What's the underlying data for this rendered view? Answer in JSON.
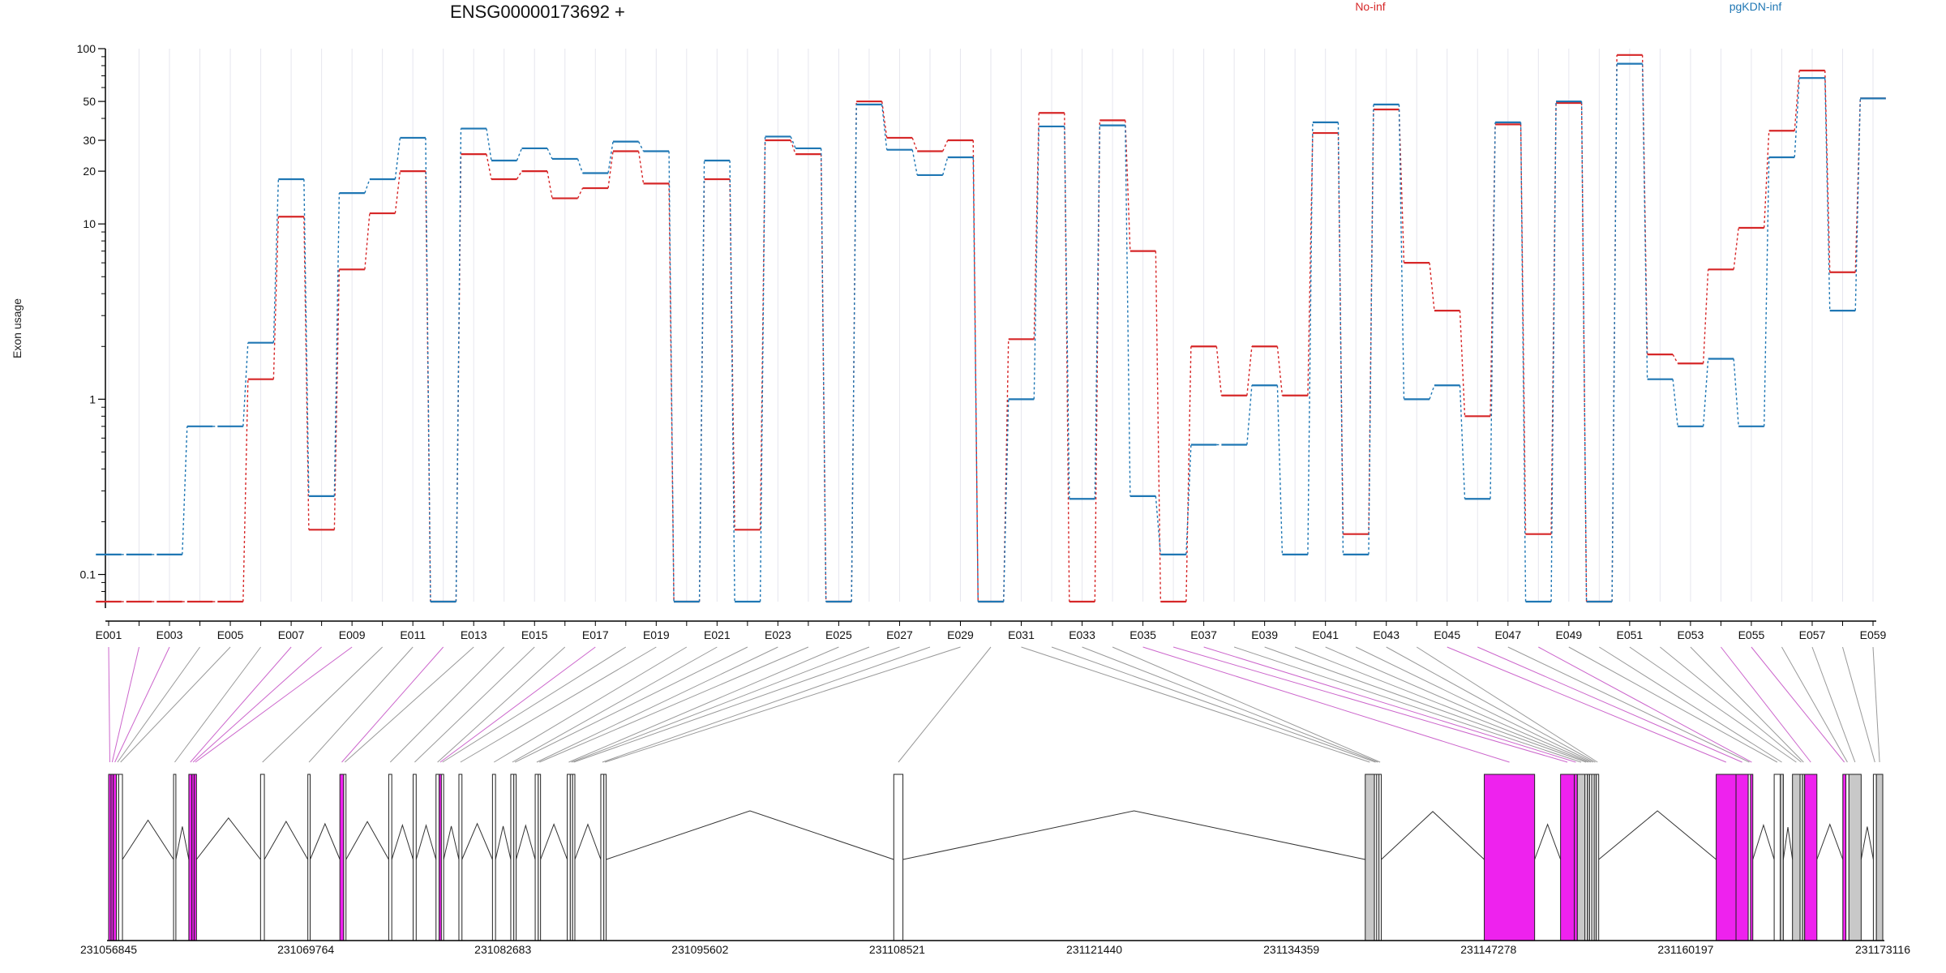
{
  "chart_data": {
    "type": "line",
    "title": "ENSG00000173692 +",
    "ylabel": "Exon usage",
    "yscale": "log",
    "ylim": [
      0.07,
      100
    ],
    "y_ticks": [
      0.1,
      1,
      10,
      20,
      30,
      50,
      100
    ],
    "y_tick_labels": [
      "0.1",
      "1",
      "10",
      "20",
      "30",
      "50",
      "100"
    ],
    "colors": {
      "No-inf": "#d62728",
      "pgKDN-inf": "#1f77b4",
      "alt_exon": "#ee22ee",
      "const_exon": "#c8c8c8"
    },
    "categories": [
      "E001",
      "E002",
      "E003",
      "E004",
      "E005",
      "E006",
      "E007",
      "E008",
      "E009",
      "E010",
      "E011",
      "E012",
      "E013",
      "E014",
      "E015",
      "E016",
      "E017",
      "E018",
      "E019",
      "E020",
      "E021",
      "E022",
      "E023",
      "E024",
      "E025",
      "E026",
      "E027",
      "E028",
      "E029",
      "E030",
      "E031",
      "E032",
      "E033",
      "E034",
      "E035",
      "E036",
      "E037",
      "E038",
      "E039",
      "E040",
      "E041",
      "E042",
      "E043",
      "E044",
      "E045",
      "E046",
      "E047",
      "E048",
      "E049",
      "E050",
      "E051",
      "E052",
      "E053",
      "E054",
      "E055",
      "E056",
      "E057",
      "E058",
      "E059"
    ],
    "x_tick_labels": [
      "E001",
      "E003",
      "E005",
      "E007",
      "E009",
      "E011",
      "E013",
      "E015",
      "E017",
      "E019",
      "E021",
      "E023",
      "E025",
      "E027",
      "E029",
      "E031",
      "E033",
      "E035",
      "E037",
      "E039",
      "E041",
      "E043",
      "E045",
      "E047",
      "E049",
      "E051",
      "E053",
      "E055",
      "E057",
      "E059"
    ],
    "series": [
      {
        "name": "No-inf",
        "values": [
          0.07,
          0.07,
          0.07,
          0.07,
          0.07,
          1.3,
          11,
          0.18,
          5.5,
          11.5,
          20,
          0.07,
          25,
          18,
          20,
          14,
          16,
          26,
          17,
          0.07,
          18,
          0.18,
          30,
          25,
          0.07,
          50,
          31,
          26,
          30,
          0.07,
          2.2,
          43,
          0.07,
          39,
          7,
          0.07,
          2.0,
          1.05,
          2.0,
          1.05,
          33,
          0.17,
          45,
          6,
          3.2,
          0.8,
          37,
          0.17,
          49,
          0.07,
          92,
          1.8,
          1.6,
          5.5,
          9.5,
          34,
          75,
          5.3,
          52
        ]
      },
      {
        "name": "pgKDN-inf",
        "values": [
          0.13,
          0.13,
          0.13,
          0.7,
          0.7,
          2.1,
          18,
          0.28,
          15,
          18,
          31,
          0.07,
          35,
          23,
          27,
          23.5,
          19.5,
          29.5,
          26,
          0.07,
          23,
          0.07,
          31.5,
          27,
          0.07,
          48,
          26.5,
          19,
          24,
          0.07,
          1.0,
          36,
          0.27,
          36.5,
          0.28,
          0.13,
          0.55,
          0.55,
          1.2,
          0.13,
          38,
          0.13,
          48,
          1.0,
          1.2,
          0.27,
          38,
          0.07,
          50,
          0.07,
          82,
          1.3,
          0.7,
          1.7,
          0.7,
          24,
          68,
          3.2,
          52
        ]
      }
    ],
    "genomic_axis": {
      "tick_labels": [
        "231056845",
        "231069764",
        "231082683",
        "231095602",
        "231108521",
        "231121440",
        "231134359",
        "231147278",
        "231160197",
        "231173116"
      ],
      "range": [
        231056845,
        231173116
      ]
    },
    "exons": [
      {
        "id": "E001",
        "start": 231056845,
        "end": 231057000,
        "fill": "alt_exon"
      },
      {
        "id": "E002",
        "start": 231057000,
        "end": 231057150,
        "fill": "alt_exon"
      },
      {
        "id": "E003",
        "start": 231057150,
        "end": 231057350,
        "fill": "alt_exon"
      },
      {
        "id": "E004",
        "start": 231057350,
        "end": 231057500,
        "fill": "none"
      },
      {
        "id": "E005",
        "start": 231057500,
        "end": 231057750,
        "fill": "none"
      },
      {
        "id": "E006",
        "start": 231061100,
        "end": 231061250,
        "fill": "none"
      },
      {
        "id": "E007",
        "start": 231062100,
        "end": 231062300,
        "fill": "alt_exon"
      },
      {
        "id": "E008",
        "start": 231062300,
        "end": 231062450,
        "fill": "alt_exon"
      },
      {
        "id": "E009",
        "start": 231062450,
        "end": 231062600,
        "fill": "alt_exon"
      },
      {
        "id": "E010",
        "start": 231066800,
        "end": 231067050,
        "fill": "none"
      },
      {
        "id": "E011",
        "start": 231069900,
        "end": 231070050,
        "fill": "none"
      },
      {
        "id": "E012",
        "start": 231072000,
        "end": 231072250,
        "fill": "alt_exon"
      },
      {
        "id": "E013",
        "start": 231072250,
        "end": 231072400,
        "fill": "none"
      },
      {
        "id": "E014",
        "start": 231075200,
        "end": 231075400,
        "fill": "none"
      },
      {
        "id": "E015",
        "start": 231076800,
        "end": 231077000,
        "fill": "none"
      },
      {
        "id": "E016",
        "start": 231078300,
        "end": 231078500,
        "fill": "none"
      },
      {
        "id": "E017",
        "start": 231078500,
        "end": 231078650,
        "fill": "alt_exon"
      },
      {
        "id": "E018",
        "start": 231078650,
        "end": 231078800,
        "fill": "none"
      },
      {
        "id": "E019",
        "start": 231079800,
        "end": 231080000,
        "fill": "none"
      },
      {
        "id": "E020",
        "start": 231082000,
        "end": 231082200,
        "fill": "none"
      },
      {
        "id": "E021",
        "start": 231083200,
        "end": 231083400,
        "fill": "none"
      },
      {
        "id": "E022",
        "start": 231083400,
        "end": 231083550,
        "fill": "none"
      },
      {
        "id": "E023",
        "start": 231084800,
        "end": 231085000,
        "fill": "none"
      },
      {
        "id": "E024",
        "start": 231085000,
        "end": 231085150,
        "fill": "none"
      },
      {
        "id": "E025",
        "start": 231086900,
        "end": 231087100,
        "fill": "none"
      },
      {
        "id": "E026",
        "start": 231087100,
        "end": 231087250,
        "fill": "none"
      },
      {
        "id": "E027",
        "start": 231087250,
        "end": 231087400,
        "fill": "none"
      },
      {
        "id": "E028",
        "start": 231089100,
        "end": 231089300,
        "fill": "none"
      },
      {
        "id": "E029",
        "start": 231089300,
        "end": 231089450,
        "fill": "none"
      },
      {
        "id": "E030",
        "start": 231108300,
        "end": 231108900,
        "fill": "none"
      },
      {
        "id": "E031",
        "start": 231139200,
        "end": 231139800,
        "fill": "const_exon"
      },
      {
        "id": "E032",
        "start": 231139800,
        "end": 231139950,
        "fill": "none"
      },
      {
        "id": "E033",
        "start": 231139950,
        "end": 231140100,
        "fill": "none"
      },
      {
        "id": "E034",
        "start": 231140100,
        "end": 231140250,
        "fill": "none"
      },
      {
        "id": "E035",
        "start": 231147000,
        "end": 231150300,
        "fill": "alt_exon"
      },
      {
        "id": "E036",
        "start": 231152000,
        "end": 231152900,
        "fill": "alt_exon"
      },
      {
        "id": "E037",
        "start": 231152900,
        "end": 231153100,
        "fill": "alt_exon"
      },
      {
        "id": "E038",
        "start": 231153100,
        "end": 231153600,
        "fill": "const_exon"
      },
      {
        "id": "E039",
        "start": 231153600,
        "end": 231153750,
        "fill": "none"
      },
      {
        "id": "E040",
        "start": 231153750,
        "end": 231153900,
        "fill": "const_exon"
      },
      {
        "id": "E041",
        "start": 231153900,
        "end": 231154050,
        "fill": "none"
      },
      {
        "id": "E042",
        "start": 231154050,
        "end": 231154200,
        "fill": "none"
      },
      {
        "id": "E043",
        "start": 231154200,
        "end": 231154350,
        "fill": "const_exon"
      },
      {
        "id": "E044",
        "start": 231154350,
        "end": 231154500,
        "fill": "none"
      },
      {
        "id": "E045",
        "start": 231162200,
        "end": 231163500,
        "fill": "alt_exon"
      },
      {
        "id": "E046",
        "start": 231163500,
        "end": 231164300,
        "fill": "alt_exon"
      },
      {
        "id": "E047",
        "start": 231164300,
        "end": 231164450,
        "fill": "none"
      },
      {
        "id": "E048",
        "start": 231164450,
        "end": 231164600,
        "fill": "alt_exon"
      },
      {
        "id": "E049",
        "start": 231166000,
        "end": 231166400,
        "fill": "none"
      },
      {
        "id": "E050",
        "start": 231166400,
        "end": 231166600,
        "fill": "const_exon"
      },
      {
        "id": "E051",
        "start": 231167200,
        "end": 231167700,
        "fill": "const_exon"
      },
      {
        "id": "E052",
        "start": 231167700,
        "end": 231167850,
        "fill": "none"
      },
      {
        "id": "E053",
        "start": 231167850,
        "end": 231168000,
        "fill": "const_exon"
      },
      {
        "id": "E054",
        "start": 231168000,
        "end": 231168800,
        "fill": "alt_exon"
      },
      {
        "id": "E055",
        "start": 231170500,
        "end": 231170700,
        "fill": "alt_exon"
      },
      {
        "id": "E056",
        "start": 231170700,
        "end": 231170900,
        "fill": "none"
      },
      {
        "id": "E057",
        "start": 231170900,
        "end": 231171700,
        "fill": "const_exon"
      },
      {
        "id": "E058",
        "start": 231172500,
        "end": 231172700,
        "fill": "none"
      },
      {
        "id": "E059",
        "start": 231172700,
        "end": 231173116,
        "fill": "const_exon"
      }
    ]
  }
}
